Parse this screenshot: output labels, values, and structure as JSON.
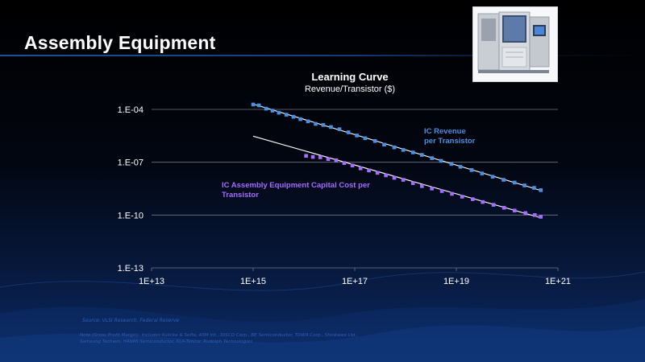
{
  "slide": {
    "title": "Assembly Equipment",
    "source": "Source: VLSI Research, Federal Reserve",
    "note": "Note (Gross Profit Margin): Includes Kulicke & Soffa, ASM Int., DISCO Corp., BE Semiconductor, TOWA Corp., Shinkawa Ltd., Samsung Techwin, HANMI Semiconductor, KLA-Tencor, Rudolph Technologies"
  },
  "colors": {
    "revenue": "#4a90e2",
    "equipment": "#a46cff",
    "trend": "#ffffff",
    "grid": "#6f7685",
    "axis_text": "#ffffff"
  },
  "chart_data": {
    "type": "scatter",
    "title": "Learning Curve",
    "subtitle": "Revenue/Transistor ($)",
    "xscale": "log",
    "yscale": "log",
    "xlim": [
      10000000000000.0,
      1e+21
    ],
    "ylim": [
      1e-13,
      0.0001
    ],
    "x_ticks": [
      "1E+13",
      "1E+15",
      "1E+17",
      "1E+19",
      "1E+21"
    ],
    "y_ticks": [
      "1.E-04",
      "1.E-07",
      "1.E-10",
      "1.E-13"
    ],
    "grid": "horizontal",
    "series": [
      {
        "name": "IC Revenue per Transistor",
        "label_lines": [
          "IC Revenue",
          "per Transistor"
        ],
        "points": [
          [
            1000000000000000.0,
            0.00019
          ],
          [
            1300000000000000.0,
            0.00017
          ],
          [
            1800000000000000.0,
            0.00011
          ],
          [
            2400000000000000.0,
            8.5e-05
          ],
          [
            3200000000000000.0,
            6.5e-05
          ],
          [
            4500000000000000.0,
            5e-05
          ],
          [
            6200000000000000.0,
            3.8e-05
          ],
          [
            8500000000000000.0,
            2.8e-05
          ],
          [
            1.2e+16,
            2.1e-05
          ],
          [
            1.7e+16,
            1.5e-05
          ],
          [
            2.4e+16,
            1.3e-05
          ],
          [
            3.4e+16,
            1e-05
          ],
          [
            5e+16,
            7.5e-06
          ],
          [
            7.5e+16,
            5e-06
          ],
          [
            1.1e+17,
            3.3e-06
          ],
          [
            1.6e+17,
            2.3e-06
          ],
          [
            2.5e+17,
            1.6e-06
          ],
          [
            3.8e+17,
            1e-06
          ],
          [
            6e+17,
            7e-07
          ],
          [
            9e+17,
            5e-07
          ],
          [
            1.4e+18,
            3.6e-07
          ],
          [
            2.1e+18,
            2.6e-07
          ],
          [
            3.3e+18,
            1.7e-07
          ],
          [
            5e+18,
            1.2e-07
          ],
          [
            8e+18,
            8e-08
          ],
          [
            1.2e+19,
            5.5e-08
          ],
          [
            2e+19,
            3.6e-08
          ],
          [
            3.2e+19,
            2.3e-08
          ],
          [
            5.2e+19,
            1.5e-08
          ],
          [
            8.5e+19,
            1e-08
          ],
          [
            1.4e+20,
            7e-09
          ],
          [
            2.2e+20,
            4.8e-09
          ],
          [
            3.4e+20,
            3.5e-09
          ],
          [
            4.6e+20,
            2.6e-09
          ]
        ],
        "trend": [
          [
            1000000000000000.0,
            0.0002
          ],
          [
            4.6e+20,
            2.5e-09
          ]
        ]
      },
      {
        "name": "IC Assembly Equipment Capital Cost per Transistor",
        "label_lines": [
          "IC Assembly Equipment Capital Cost per",
          "Transistor"
        ],
        "points": [
          [
            1.1e+16,
            2.3e-07
          ],
          [
            1.5e+16,
            2e-07
          ],
          [
            2.1e+16,
            1.9e-07
          ],
          [
            3e+16,
            1.5e-07
          ],
          [
            4.3e+16,
            1.3e-07
          ],
          [
            6.2e+16,
            9e-08
          ],
          [
            9e+16,
            6.5e-08
          ],
          [
            1.3e+17,
            4.5e-08
          ],
          [
            1.9e+17,
            3.4e-08
          ],
          [
            2.8e+17,
            2.5e-08
          ],
          [
            4.1e+17,
            1.8e-08
          ],
          [
            6e+17,
            1.3e-08
          ],
          [
            9e+17,
            1e-08
          ],
          [
            1.4e+18,
            6.5e-09
          ],
          [
            2.1e+18,
            4.4e-09
          ],
          [
            3.3e+18,
            3.2e-09
          ],
          [
            5.2e+18,
            2.3e-09
          ],
          [
            8.2e+18,
            1.6e-09
          ],
          [
            1.3e+19,
            1.1e-09
          ],
          [
            2.1e+19,
            8e-10
          ],
          [
            3.3e+19,
            5.5e-10
          ],
          [
            5.4e+19,
            3.8e-10
          ],
          [
            8.7e+19,
            2.6e-10
          ],
          [
            1.4e+20,
            1.8e-10
          ],
          [
            2.3e+20,
            1.3e-10
          ],
          [
            3.5e+20,
            1e-10
          ],
          [
            4.6e+20,
            8e-11
          ]
        ],
        "trend": [
          [
            1000000000000000.0,
            3e-06
          ],
          [
            4.6e+20,
            7e-11
          ]
        ]
      }
    ]
  }
}
